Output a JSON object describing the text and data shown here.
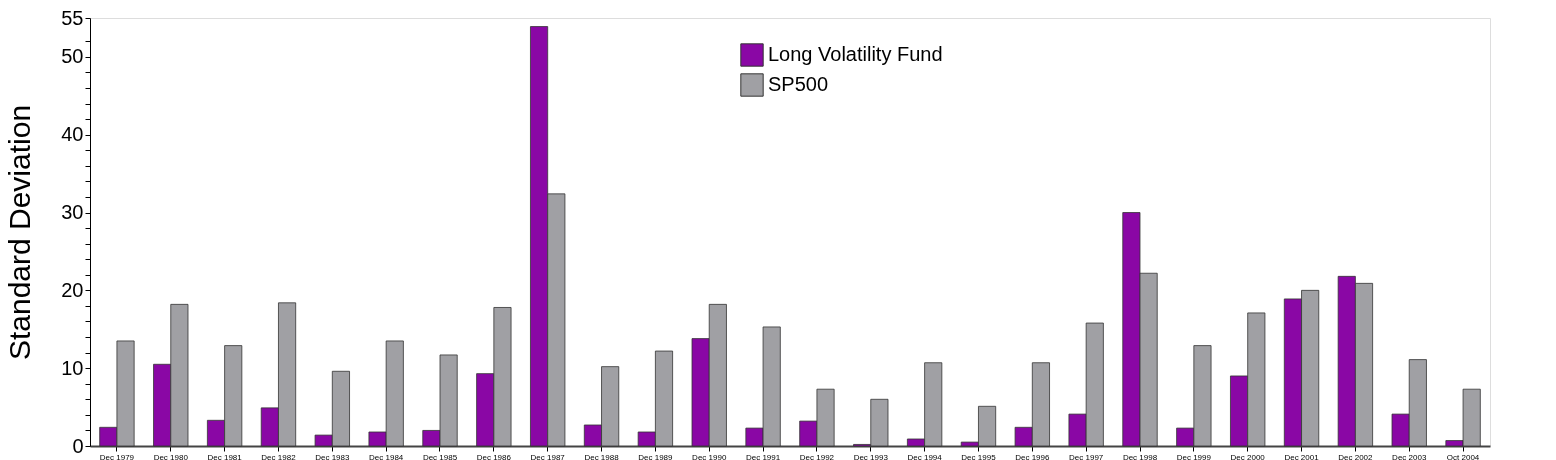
{
  "chart_data": {
    "type": "bar",
    "ylabel": "Standard Deviation",
    "categories": [
      "Dec 1979",
      "Dec 1980",
      "Dec 1981",
      "Dec 1982",
      "Dec 1983",
      "Dec 1984",
      "Dec 1985",
      "Dec 1986",
      "Dec 1987",
      "Dec 1988",
      "Dec 1989",
      "Dec 1990",
      "Dec 1991",
      "Dec 1992",
      "Dec 1993",
      "Dec 1994",
      "Dec 1995",
      "Dec 1996",
      "Dec 1997",
      "Dec 1998",
      "Dec 1999",
      "Dec 2000",
      "Dec 2001",
      "Dec 2002",
      "Dec 2003",
      "Oct 2004"
    ],
    "series": [
      {
        "name": "Long Volatility Fund",
        "color": "#8a07a5",
        "values": [
          2.4,
          10.5,
          3.3,
          4.9,
          1.4,
          1.8,
          2.0,
          9.3,
          53.9,
          2.7,
          1.8,
          13.8,
          2.3,
          3.2,
          0.2,
          0.9,
          0.5,
          2.4,
          4.1,
          30.0,
          2.3,
          9.0,
          18.9,
          21.8,
          4.1,
          0.7
        ]
      },
      {
        "name": "SP500",
        "color": "#a0a0a4",
        "values": [
          13.5,
          18.2,
          12.9,
          18.4,
          9.6,
          13.5,
          11.7,
          17.8,
          32.4,
          10.2,
          12.2,
          18.2,
          15.3,
          7.3,
          6.0,
          10.7,
          5.1,
          10.7,
          15.8,
          22.2,
          12.9,
          17.1,
          20.0,
          20.9,
          11.1,
          7.3
        ]
      }
    ],
    "ylim": [
      0,
      55
    ],
    "yticks": [
      0,
      {
        "value": 2,
        "label": null
      },
      {
        "value": 4,
        "label": null
      },
      {
        "value": 6,
        "label": null
      },
      {
        "value": 8,
        "label": null
      },
      10,
      {
        "value": 12,
        "label": null
      },
      {
        "value": 14,
        "label": null
      },
      {
        "value": 16,
        "label": null
      },
      {
        "value": 18,
        "label": null
      },
      20,
      {
        "value": 22,
        "label": null
      },
      {
        "value": 24,
        "label": null
      },
      {
        "value": 26,
        "label": null
      },
      {
        "value": 28,
        "label": null
      },
      30,
      {
        "value": 32,
        "label": null
      },
      {
        "value": 34,
        "label": null
      },
      {
        "value": 36,
        "label": null
      },
      {
        "value": 38,
        "label": null
      },
      40,
      {
        "value": 42,
        "label": null
      },
      {
        "value": 44,
        "label": null
      },
      {
        "value": 46,
        "label": null
      },
      {
        "value": 48,
        "label": null
      },
      50,
      {
        "value": 52,
        "label": null
      },
      55
    ],
    "grid": false,
    "legend": "top"
  }
}
